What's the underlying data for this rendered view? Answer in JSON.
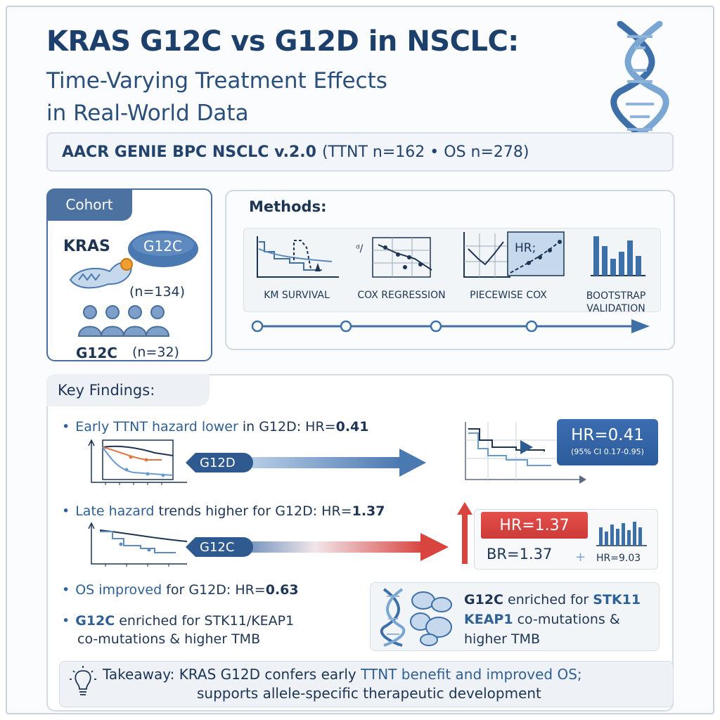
{
  "header": {
    "title": "KRAS G12C vs G12D in NSCLC:",
    "subtitle_line1": "Time-Varying Treatment Effects",
    "subtitle_line2": "in Real-World Data"
  },
  "dataset": {
    "name": "AACR GENIE BPC NSCLC v.2.0",
    "counts": "(TTNT n=162 • OS n=278)"
  },
  "cohort": {
    "tab": "Cohort",
    "gene": "KRAS",
    "allele_badge": "G12C",
    "n_top": "(n=134)",
    "allele_bottom": "G12C",
    "n_bottom": "(n=32)"
  },
  "methods": {
    "title": "Methods:",
    "items": [
      {
        "label": "KM SURVIVAL",
        "icon": "km-curve-icon"
      },
      {
        "label": "COX REGRESSION",
        "icon": "cox-plot-icon"
      },
      {
        "label": "PIECEWISE COX",
        "icon": "piecewise-hr-icon",
        "icon_text": "HR;"
      },
      {
        "label": "BOOTSTRAP VALIDATION",
        "icon": "histogram-icon"
      }
    ]
  },
  "findings": {
    "title": "Key Findings:",
    "f1": {
      "hl": "Early TTNT hazard lower",
      "rest": " in G12D: HR=",
      "value": "0.41",
      "pill": "G12D"
    },
    "f2": {
      "hl": "Late hazard",
      "rest": " trends higher for G12D: HR=",
      "value": "1.37",
      "pill": "G12C"
    },
    "f3": {
      "hl": "OS improved",
      "rest": " for G12D: HR=",
      "value": "0.63"
    },
    "f4": {
      "hl": "G12C",
      "rest": " enriched for STK11/KEAP1",
      "line2": "co-mutations & higher TMB"
    },
    "hr_box": {
      "main": "HR=0.41",
      "ci": "(95% CI 0.17-0.95)"
    },
    "hr_red": "HR=1.37",
    "br": "BR=1.37",
    "hr_small": "HR=9.03",
    "comut": {
      "l1a": "G12C",
      "l1b": " enriched for ",
      "l1c": "STK11",
      "l2a": "KEAP1",
      "l2b": " co-mutations &",
      "l3": "higher TMB"
    }
  },
  "takeaway": {
    "label": "Takeaway:",
    "l1a": "KRAS G12D confers early ",
    "l1b": "TTNT benefit and improved OS;",
    "l2": "supports allele-specific therapeutic development"
  },
  "colors": {
    "navy": "#1c3f6c",
    "blue": "#2e5f95",
    "red": "#d9443f"
  }
}
